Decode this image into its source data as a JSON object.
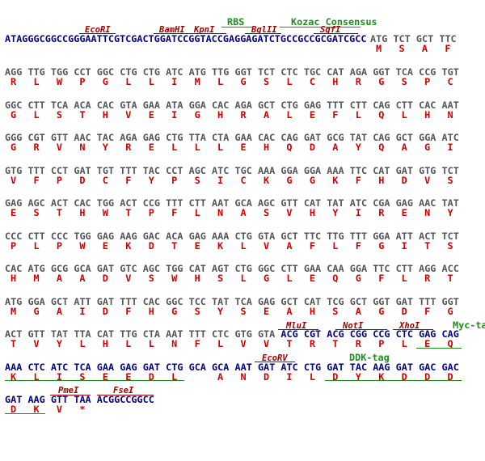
{
  "header": {
    "sequence": "ATAGGGCGGCCGGGAATTCGTCGACTGGATCCGGTACCGAGGAGATCTGCCGCCGCGATCGCC",
    "codons": [
      "ATG",
      "TCT",
      "GCT",
      "TTC"
    ],
    "aa": [
      "M",
      "S",
      "A",
      "F"
    ],
    "annotations": [
      "EcoRI",
      "BamHI",
      "KpnI",
      "BglII",
      "SgfI",
      "RBS",
      "Kozac Consensus"
    ]
  },
  "rows": [
    {
      "codons": [
        "AGG",
        "TTG",
        "TGG",
        "CCT",
        "GGC",
        "CTG",
        "CTG",
        "ATC",
        "ATG",
        "TTG",
        "GGT",
        "TCT",
        "CTC",
        "TGC",
        "CAT",
        "AGA",
        "GGT",
        "TCA",
        "CCG",
        "TGT"
      ],
      "aa": [
        "R",
        "L",
        "W",
        "P",
        "G",
        "L",
        "L",
        "I",
        "M",
        "L",
        "G",
        "S",
        "L",
        "C",
        "H",
        "R",
        "G",
        "S",
        "P",
        "C"
      ]
    },
    {
      "codons": [
        "GGC",
        "CTT",
        "TCA",
        "ACA",
        "CAC",
        "GTA",
        "GAA",
        "ATA",
        "GGA",
        "CAC",
        "AGA",
        "GCT",
        "CTG",
        "GAG",
        "TTT",
        "CTT",
        "CAG",
        "CTT",
        "CAC",
        "AAT"
      ],
      "aa": [
        "G",
        "L",
        "S",
        "T",
        "H",
        "V",
        "E",
        "I",
        "G",
        "H",
        "R",
        "A",
        "L",
        "E",
        "F",
        "L",
        "Q",
        "L",
        "H",
        "N"
      ]
    },
    {
      "codons": [
        "GGG",
        "CGT",
        "GTT",
        "AAC",
        "TAC",
        "AGA",
        "GAG",
        "CTG",
        "TTA",
        "CTA",
        "GAA",
        "CAC",
        "CAG",
        "GAT",
        "GCG",
        "TAT",
        "CAG",
        "GCT",
        "GGA",
        "ATC"
      ],
      "aa": [
        "G",
        "R",
        "V",
        "N",
        "Y",
        "R",
        "E",
        "L",
        "L",
        "L",
        "E",
        "H",
        "Q",
        "D",
        "A",
        "Y",
        "Q",
        "A",
        "G",
        "I"
      ]
    },
    {
      "codons": [
        "GTG",
        "TTT",
        "CCT",
        "GAT",
        "TGT",
        "TTT",
        "TAC",
        "CCT",
        "AGC",
        "ATC",
        "TGC",
        "AAA",
        "GGA",
        "GGA",
        "AAA",
        "TTC",
        "CAT",
        "GAT",
        "GTG",
        "TCT"
      ],
      "aa": [
        "V",
        "F",
        "P",
        "D",
        "C",
        "F",
        "Y",
        "P",
        "S",
        "I",
        "C",
        "K",
        "G",
        "G",
        "K",
        "F",
        "H",
        "D",
        "V",
        "S"
      ]
    },
    {
      "codons": [
        "GAG",
        "AGC",
        "ACT",
        "CAC",
        "TGG",
        "ACT",
        "CCG",
        "TTT",
        "CTT",
        "AAT",
        "GCA",
        "AGC",
        "GTT",
        "CAT",
        "TAT",
        "ATC",
        "CGA",
        "GAG",
        "AAC",
        "TAT"
      ],
      "aa": [
        "E",
        "S",
        "T",
        "H",
        "W",
        "T",
        "P",
        "F",
        "L",
        "N",
        "A",
        "S",
        "V",
        "H",
        "Y",
        "I",
        "R",
        "E",
        "N",
        "Y"
      ]
    },
    {
      "codons": [
        "CCC",
        "CTT",
        "CCC",
        "TGG",
        "GAG",
        "AAG",
        "GAC",
        "ACA",
        "GAG",
        "AAA",
        "CTG",
        "GTA",
        "GCT",
        "TTC",
        "TTG",
        "TTT",
        "GGA",
        "ATT",
        "ACT",
        "TCT"
      ],
      "aa": [
        "P",
        "L",
        "P",
        "W",
        "E",
        "K",
        "D",
        "T",
        "E",
        "K",
        "L",
        "V",
        "A",
        "F",
        "L",
        "F",
        "G",
        "I",
        "T",
        "S"
      ]
    },
    {
      "codons": [
        "CAC",
        "ATG",
        "GCG",
        "GCA",
        "GAT",
        "GTC",
        "AGC",
        "TGG",
        "CAT",
        "AGT",
        "CTG",
        "GGC",
        "CTT",
        "GAA",
        "CAA",
        "GGA",
        "TTC",
        "CTT",
        "AGG",
        "ACC"
      ],
      "aa": [
        "H",
        "M",
        "A",
        "A",
        "D",
        "V",
        "S",
        "W",
        "H",
        "S",
        "L",
        "G",
        "L",
        "E",
        "Q",
        "G",
        "F",
        "L",
        "R",
        "T"
      ]
    },
    {
      "codons": [
        "ATG",
        "GGA",
        "GCT",
        "ATT",
        "GAT",
        "TTT",
        "CAC",
        "GGC",
        "TCC",
        "TAT",
        "TCA",
        "GAG",
        "GCT",
        "CAT",
        "TCG",
        "GCT",
        "GGT",
        "GAT",
        "TTT",
        "GGT"
      ],
      "aa": [
        "M",
        "G",
        "A",
        "I",
        "D",
        "F",
        "H",
        "G",
        "S",
        "Y",
        "S",
        "E",
        "A",
        "H",
        "S",
        "A",
        "G",
        "D",
        "F",
        "G"
      ]
    },
    {
      "codons": [
        "ACT",
        "GTT",
        "TAT",
        "TTA",
        "CAT",
        "TTG",
        "CTA",
        "AAT",
        "TTT",
        "CTC",
        "GTG",
        "GTA",
        "ACG",
        "CGT",
        "ACG",
        "CGG",
        "CCG",
        "CTC",
        "GAG",
        "CAG"
      ],
      "aa": [
        "T",
        "V",
        "Y",
        "L",
        "H",
        "L",
        "L",
        "N",
        "F",
        "L",
        "V",
        "V",
        "T",
        "R",
        "T",
        "R",
        "P",
        "L",
        "E",
        "Q"
      ],
      "annotations": [
        "MluI",
        "NotI",
        "XhoI",
        "Myc-tag"
      ]
    },
    {
      "codons": [
        "AAA",
        "CTC",
        "ATC",
        "TCA",
        "GAA",
        "GAG",
        "GAT",
        "CTG",
        "GCA",
        "GCA",
        "AAT",
        "GAT",
        "ATC",
        "CTG",
        "GAT",
        "TAC",
        "AAG",
        "GAT",
        "GAC",
        "GAC"
      ],
      "aa": [
        "K",
        "L",
        "I",
        "S",
        "E",
        "E",
        "D",
        "L",
        null,
        "A",
        "N",
        "D",
        "I",
        "L",
        "D",
        "Y",
        "K",
        "D",
        "D",
        "D"
      ],
      "annotations": [
        "EcoRV",
        "DDK-tag"
      ]
    },
    {
      "codons": [
        "GAT",
        "AAG",
        "GTT",
        "TAA",
        "ACGGCCGGCC"
      ],
      "aa": [
        "D",
        "K",
        "V",
        "*"
      ],
      "annotations": [
        "PmeI",
        "FseI"
      ]
    }
  ]
}
